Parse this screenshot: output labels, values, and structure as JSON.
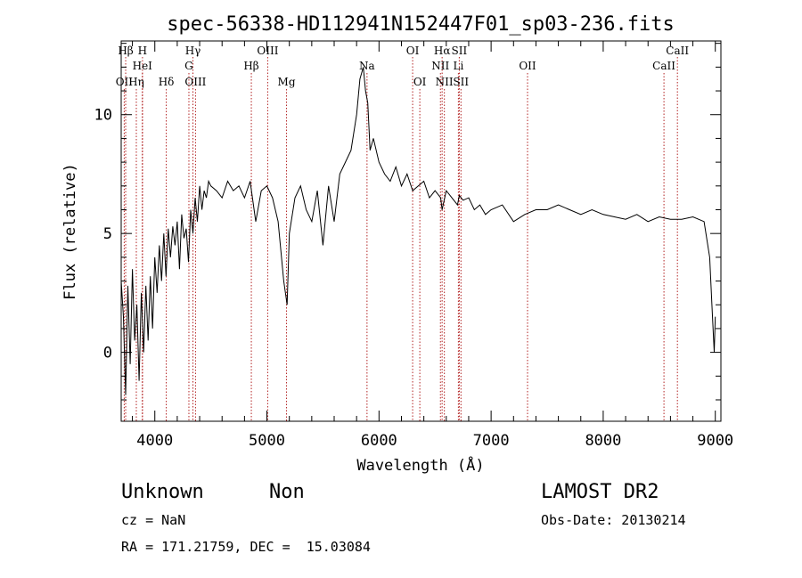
{
  "chart_data": {
    "type": "line",
    "title": "spec-56338-HD112941N152447F01_sp03-236.fits",
    "xlabel": "Wavelength (Å)",
    "ylabel": "Flux (relative)",
    "xlim": [
      3700,
      9050
    ],
    "ylim": [
      -2.9,
      13.1
    ],
    "x_ticks": [
      4000,
      5000,
      6000,
      7000,
      8000,
      9000
    ],
    "y_ticks": [
      0,
      5,
      10
    ],
    "grid": false,
    "line_color": "#000000",
    "marker_color": "#b22222",
    "series": [
      {
        "x": [
          3700,
          3720,
          3740,
          3760,
          3780,
          3800,
          3820,
          3840,
          3860,
          3880,
          3900,
          3920,
          3940,
          3960,
          3980,
          4000,
          4020,
          4040,
          4060,
          4080,
          4100,
          4120,
          4140,
          4160,
          4180,
          4200,
          4220,
          4240,
          4260,
          4280,
          4300,
          4320,
          4340,
          4360,
          4380,
          4400,
          4420,
          4440,
          4460,
          4480,
          4500,
          4550,
          4600,
          4650,
          4700,
          4750,
          4800,
          4850,
          4900,
          4950,
          5000,
          5050,
          5100,
          5150,
          5180,
          5200,
          5250,
          5300,
          5350,
          5400,
          5450,
          5500,
          5550,
          5600,
          5650,
          5700,
          5750,
          5800,
          5830,
          5860,
          5880,
          5900,
          5920,
          5950,
          6000,
          6050,
          6100,
          6150,
          6200,
          6250,
          6300,
          6350,
          6400,
          6450,
          6500,
          6550,
          6563,
          6600,
          6650,
          6700,
          6716,
          6750,
          6800,
          6850,
          6900,
          6950,
          7000,
          7100,
          7200,
          7300,
          7400,
          7500,
          7600,
          7700,
          7800,
          7900,
          8000,
          8100,
          8200,
          8300,
          8400,
          8500,
          8600,
          8700,
          8800,
          8900,
          8950,
          8970,
          8990,
          9000
        ],
        "y": [
          3.0,
          1.5,
          -1.8,
          2.8,
          -0.5,
          3.5,
          0.5,
          2.0,
          -1.2,
          2.5,
          0.0,
          2.8,
          0.5,
          3.2,
          1.0,
          4.0,
          2.5,
          4.5,
          3.0,
          5.0,
          3.2,
          5.2,
          4.0,
          5.3,
          4.5,
          5.5,
          3.5,
          5.8,
          4.8,
          5.2,
          3.8,
          6.0,
          5.0,
          6.5,
          5.5,
          7.0,
          6.0,
          6.8,
          6.5,
          7.2,
          7.0,
          6.8,
          6.5,
          7.2,
          6.8,
          7.0,
          6.5,
          7.2,
          5.5,
          6.8,
          7.0,
          6.5,
          5.5,
          3.0,
          2.0,
          5.0,
          6.5,
          7.0,
          6.0,
          5.5,
          6.8,
          4.5,
          7.0,
          5.5,
          7.5,
          8.0,
          8.5,
          10.0,
          11.5,
          12.0,
          11.0,
          10.5,
          8.5,
          9.0,
          8.0,
          7.5,
          7.2,
          7.8,
          7.0,
          7.5,
          6.8,
          7.0,
          7.2,
          6.5,
          6.8,
          6.5,
          6.0,
          6.8,
          6.5,
          6.2,
          6.6,
          6.4,
          6.5,
          6.0,
          6.2,
          5.8,
          6.0,
          6.2,
          5.5,
          5.8,
          6.0,
          6.0,
          6.2,
          6.0,
          5.8,
          6.0,
          5.8,
          5.7,
          5.6,
          5.8,
          5.5,
          5.7,
          5.6,
          5.6,
          5.7,
          5.5,
          4.0,
          2.0,
          0.0,
          1.5
        ]
      }
    ],
    "lines": [
      {
        "label": "Hβ",
        "wl": 3740,
        "row": "top"
      },
      {
        "label": "H",
        "wl": 3890,
        "row": "top"
      },
      {
        "label": "Hγ",
        "wl": 4340,
        "row": "top"
      },
      {
        "label": "OIII",
        "wl": 5007,
        "row": "top"
      },
      {
        "label": "OI",
        "wl": 6300,
        "row": "top"
      },
      {
        "label": "Hα",
        "wl": 6563,
        "row": "top"
      },
      {
        "label": "SII",
        "wl": 6716,
        "row": "top"
      },
      {
        "label": "CaII",
        "wl": 8662,
        "row": "top"
      },
      {
        "label": "HeI",
        "wl": 3889,
        "row": "mid"
      },
      {
        "label": "G",
        "wl": 4304,
        "row": "mid"
      },
      {
        "label": "Hβ",
        "wl": 4861,
        "row": "mid"
      },
      {
        "label": "Na",
        "wl": 5893,
        "row": "mid"
      },
      {
        "label": "NII",
        "wl": 6548,
        "row": "mid"
      },
      {
        "label": "Li",
        "wl": 6708,
        "row": "mid"
      },
      {
        "label": "OII",
        "wl": 7325,
        "row": "mid"
      },
      {
        "label": "CaII",
        "wl": 8542,
        "row": "mid"
      },
      {
        "label": "OII",
        "wl": 3727,
        "row": "low"
      },
      {
        "label": "Hη",
        "wl": 3835,
        "row": "low"
      },
      {
        "label": "Hδ",
        "wl": 4102,
        "row": "low"
      },
      {
        "label": "OIII",
        "wl": 4363,
        "row": "low"
      },
      {
        "label": "Mg",
        "wl": 5175,
        "row": "low"
      },
      {
        "label": "OI",
        "wl": 6364,
        "row": "low"
      },
      {
        "label": "NII",
        "wl": 6583,
        "row": "low"
      },
      {
        "label": "SII",
        "wl": 6731,
        "row": "low"
      }
    ]
  },
  "info": {
    "class": "Unknown",
    "subclass": "Non",
    "survey": "LAMOST DR2",
    "cz": "cz = NaN",
    "obs_date": "Obs-Date: 20130214",
    "radec": "RA = 171.21759, DEC =  15.03084"
  }
}
